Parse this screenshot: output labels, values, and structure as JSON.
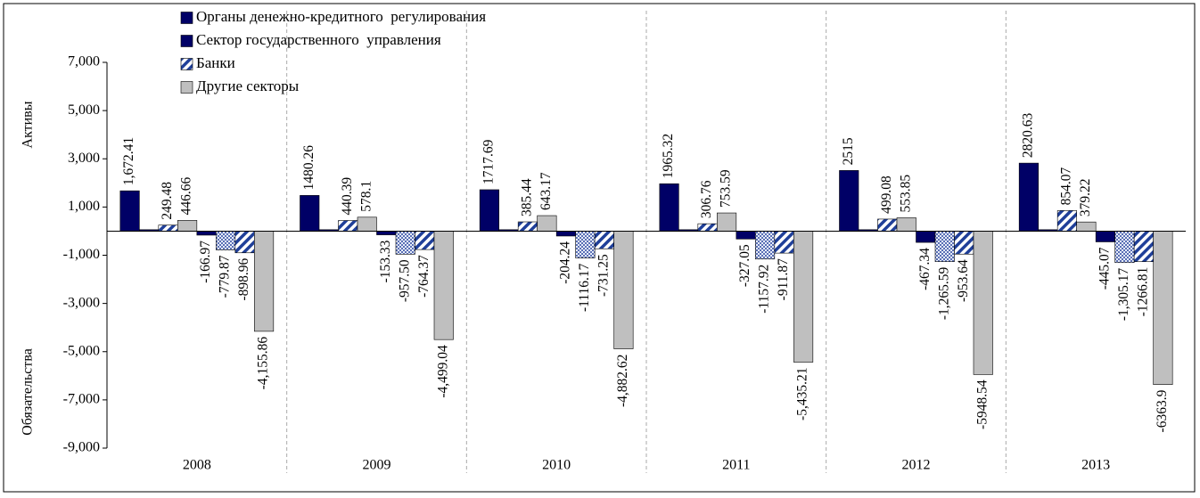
{
  "chart_data": {
    "type": "bar",
    "categories": [
      "2008",
      "2009",
      "2010",
      "2011",
      "2012",
      "2013"
    ],
    "y_label_top": "Активы",
    "y_label_bottom": "Обязательства",
    "ylim": [
      -9000,
      7000
    ],
    "yticks": [
      {
        "value": -9000,
        "label": "-9,000"
      },
      {
        "value": -7000,
        "label": "-7,000"
      },
      {
        "value": -5000,
        "label": "-5,000"
      },
      {
        "value": -3000,
        "label": "-3,000"
      },
      {
        "value": -1000,
        "label": "-1,000"
      },
      {
        "value": 1000,
        "label": "1,000"
      },
      {
        "value": 3000,
        "label": "3,000"
      },
      {
        "value": 5000,
        "label": "5,000"
      },
      {
        "value": 7000,
        "label": "7,000"
      }
    ],
    "series": [
      {
        "name": "Органы денежно-кредитного  регулирования",
        "color": "#000066",
        "pattern": "solid",
        "liability_pattern": "solid",
        "values": [
          1672.41,
          1480.26,
          1717.69,
          1965.32,
          2515,
          2820.63
        ],
        "value_labels": [
          "1,672.41",
          "1480.26",
          "1717.69",
          "1965.32",
          "2515",
          "2820.63"
        ],
        "liabilities": [
          -166.97,
          -153.33,
          -204.24,
          -327.05,
          -467.34,
          -445.07
        ],
        "liability_labels": [
          "-166.97",
          "-153.33",
          "-204.24",
          "-327.05",
          "-467.34",
          "-445.07"
        ]
      },
      {
        "name": "Сектор государственного  управления",
        "color": "#000066",
        "pattern": "solid",
        "liability_pattern": "checker",
        "values": [
          60,
          60,
          60,
          60,
          60,
          60
        ],
        "value_labels": [
          null,
          null,
          null,
          null,
          null,
          null
        ],
        "liabilities": [
          -779.87,
          -957.5,
          -1116.17,
          -1157.92,
          -1265.59,
          -1305.17
        ],
        "liability_labels": [
          "-779.87",
          "-957.50",
          "-1116.17",
          "-1157.92",
          "-1,265.59",
          "-1,305.17"
        ]
      },
      {
        "name": "Банки",
        "color": "#1f3f99",
        "pattern": "diagonal",
        "liability_pattern": "diagonal",
        "values": [
          249.48,
          440.39,
          385.44,
          306.76,
          499.08,
          854.07
        ],
        "value_labels": [
          "249.48",
          "440.39",
          "385.44",
          "306.76",
          "499.08",
          "854.07"
        ],
        "liabilities": [
          -898.96,
          -764.37,
          -731.25,
          -911.87,
          -953.64,
          -1266.81
        ],
        "liability_labels": [
          "-898.96",
          "-764.37",
          "-731.25",
          "-911.87",
          "-953.64",
          "-1266.81"
        ]
      },
      {
        "name": "Другие секторы",
        "color": "#bfbfbf",
        "pattern": "solid",
        "liability_pattern": "solid",
        "values": [
          446.66,
          578.1,
          643.17,
          753.59,
          553.85,
          379.22
        ],
        "value_labels": [
          "446.66",
          "578.1",
          "643.17",
          "753.59",
          "553.85",
          "379.22"
        ],
        "liabilities": [
          -4155.86,
          -4499.04,
          -4882.62,
          -5435.21,
          -5948.54,
          -6363.9
        ],
        "liability_labels": [
          "-4,155.86",
          "-4,499.04",
          "-4,882.62",
          "-5,435.21",
          "-5948.54",
          "-6363.9"
        ]
      }
    ]
  }
}
